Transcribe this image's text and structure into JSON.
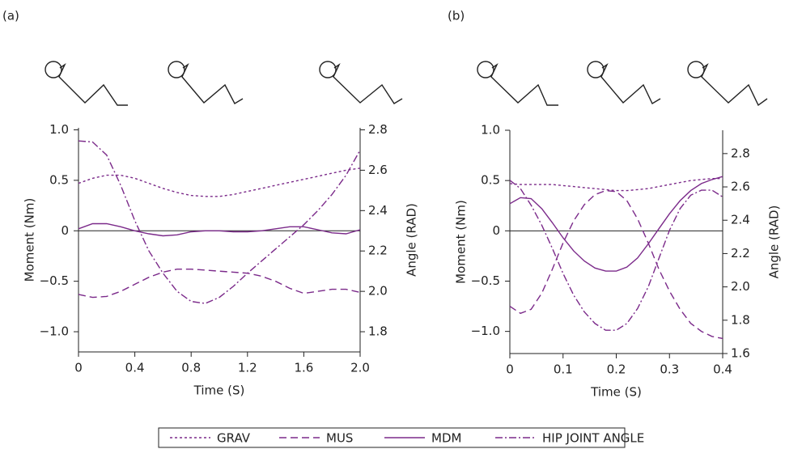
{
  "chart_data": [
    {
      "type": "line",
      "label": "(a)",
      "xlabel": "Time (S)",
      "ylabel": "Moment (Nm)",
      "y2label": "Angle (RAD)",
      "x": [
        0,
        0.1,
        0.2,
        0.3,
        0.4,
        0.5,
        0.6,
        0.7,
        0.8,
        0.9,
        1.0,
        1.1,
        1.2,
        1.3,
        1.4,
        1.5,
        1.6,
        1.7,
        1.8,
        1.9,
        2.0
      ],
      "xlim": [
        0,
        2.0
      ],
      "xticks": [
        0,
        0.4,
        0.8,
        1.2,
        1.6,
        {
          "value": 2.0,
          "label": "2.0"
        }
      ],
      "ylim": [
        -1.2,
        1.02
      ],
      "yticks": [
        {
          "value": -1.0,
          "label": "−1.0"
        },
        {
          "value": -0.5,
          "label": "−0.5"
        },
        0,
        0.5,
        {
          "value": 1.0,
          "label": "1.0"
        }
      ],
      "y2lim": [
        1.7,
        2.81
      ],
      "y2ticks": [
        1.8,
        {
          "value": 2.0,
          "label": "2.0"
        },
        2.2,
        2.4,
        2.6,
        2.8
      ],
      "series": [
        {
          "name": "GRAV",
          "color": "#7b2a8a",
          "linestyle": "dotted",
          "values": [
            0.47,
            0.52,
            0.55,
            0.55,
            0.52,
            0.47,
            0.42,
            0.38,
            0.35,
            0.34,
            0.34,
            0.36,
            0.39,
            0.42,
            0.45,
            0.48,
            0.51,
            0.54,
            0.57,
            0.6,
            0.62
          ]
        },
        {
          "name": "MUS",
          "color": "#7b2a8a",
          "linestyle": "dashed",
          "values": [
            -0.63,
            -0.66,
            -0.65,
            -0.6,
            -0.53,
            -0.46,
            -0.41,
            -0.38,
            -0.38,
            -0.39,
            -0.4,
            -0.41,
            -0.42,
            -0.45,
            -0.5,
            -0.57,
            -0.62,
            -0.6,
            -0.58,
            -0.58,
            -0.61
          ]
        },
        {
          "name": "MDM",
          "color": "#7b2a8a",
          "linestyle": "solid",
          "values": [
            0.02,
            0.07,
            0.07,
            0.04,
            0.0,
            -0.03,
            -0.05,
            -0.04,
            -0.01,
            0.0,
            0.0,
            -0.01,
            -0.01,
            0.0,
            0.02,
            0.04,
            0.04,
            0.01,
            -0.02,
            -0.03,
            0.01
          ]
        },
        {
          "name": "HIP JOINT ANGLE",
          "color": "#7b2a8a",
          "linestyle": "dashdot",
          "axis": "y2",
          "values": [
            2.745,
            2.74,
            2.675,
            2.525,
            2.35,
            2.2,
            2.09,
            2.0,
            1.95,
            1.94,
            1.97,
            2.025,
            2.09,
            2.15,
            2.21,
            2.27,
            2.33,
            2.4,
            2.48,
            2.575,
            2.7
          ]
        }
      ]
    },
    {
      "type": "line",
      "label": "(b)",
      "xlabel": "Time (S)",
      "ylabel": "Moment (Nm)",
      "y2label": "Angle (RAD)",
      "x": [
        0,
        0.02,
        0.04,
        0.06,
        0.08,
        0.1,
        0.12,
        0.14,
        0.16,
        0.18,
        0.2,
        0.22,
        0.24,
        0.26,
        0.28,
        0.3,
        0.32,
        0.34,
        0.36,
        0.38,
        0.4
      ],
      "xlim": [
        0,
        0.4
      ],
      "xticks": [
        0,
        0.1,
        0.2,
        0.3,
        0.4
      ],
      "ylim": [
        -1.22,
        1.0
      ],
      "yticks": [
        {
          "value": -1.0,
          "label": "−1.0"
        },
        {
          "value": -0.5,
          "label": "−0.5"
        },
        0,
        0.5,
        {
          "value": 1.0,
          "label": "1.0"
        }
      ],
      "y2lim": [
        1.6,
        2.94
      ],
      "y2ticks": [
        1.6,
        1.8,
        {
          "value": 2.0,
          "label": "2.0"
        },
        2.2,
        2.4,
        2.6,
        2.8
      ],
      "series": [
        {
          "color": "#7b2a8a",
          "linestyle": "dotted",
          "values": [
            0.47,
            0.46,
            0.46,
            0.46,
            0.46,
            0.45,
            0.44,
            0.43,
            0.42,
            0.41,
            0.4,
            0.4,
            0.41,
            0.42,
            0.44,
            0.46,
            0.48,
            0.5,
            0.51,
            0.52,
            0.52
          ]
        },
        {
          "color": "#7b2a8a",
          "linestyle": "dashed",
          "values": [
            -0.75,
            -0.82,
            -0.78,
            -0.62,
            -0.38,
            -0.12,
            0.1,
            0.26,
            0.36,
            0.4,
            0.39,
            0.3,
            0.12,
            -0.12,
            -0.38,
            -0.6,
            -0.78,
            -0.92,
            -1.0,
            -1.05,
            -1.07
          ]
        },
        {
          "color": "#7b2a8a",
          "linestyle": "solid",
          "values": [
            0.27,
            0.33,
            0.32,
            0.22,
            0.08,
            -0.07,
            -0.2,
            -0.3,
            -0.37,
            -0.4,
            -0.4,
            -0.36,
            -0.27,
            -0.13,
            0.02,
            0.17,
            0.3,
            0.4,
            0.47,
            0.51,
            0.54
          ]
        },
        {
          "color": "#7b2a8a",
          "linestyle": "dashdot",
          "axis": "y2",
          "values": [
            2.64,
            2.59,
            2.49,
            2.37,
            2.23,
            2.08,
            1.95,
            1.85,
            1.78,
            1.74,
            1.74,
            1.78,
            1.87,
            2.0,
            2.17,
            2.34,
            2.47,
            2.55,
            2.58,
            2.58,
            2.54
          ]
        }
      ]
    }
  ]
}
